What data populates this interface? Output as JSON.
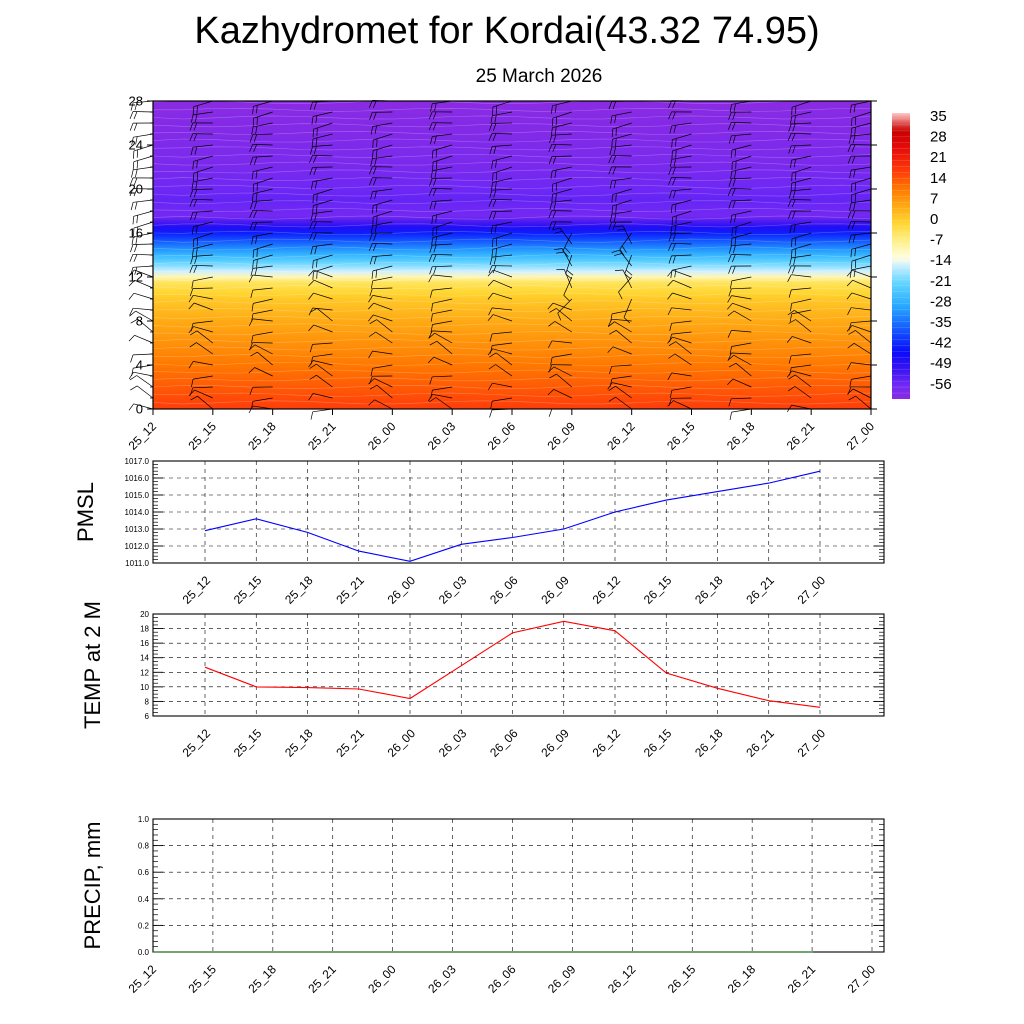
{
  "header": {
    "title": "Kazhydromet for Kordai(43.32 74.95)",
    "subtitle": "25 March 2026"
  },
  "time_labels": [
    "25_12",
    "25_15",
    "25_18",
    "25_21",
    "26_00",
    "26_03",
    "26_06",
    "26_09",
    "26_12",
    "26_15",
    "26_18",
    "26_21",
    "27_00"
  ],
  "colors": {
    "pmsl_line": "#0000ff",
    "temp_line": "#ff0000",
    "precip_line": "#006400",
    "grid": "#000000",
    "wind_barb": "#000000"
  },
  "chart_data": [
    {
      "id": "profile",
      "type": "heatmap",
      "title": "",
      "ylabel": "",
      "ylim": [
        0,
        28
      ],
      "yticks": [
        0,
        4,
        8,
        12,
        16,
        20,
        24,
        28
      ],
      "x": [
        "25_12",
        "25_15",
        "25_18",
        "25_21",
        "26_00",
        "26_03",
        "26_06",
        "26_09",
        "26_12",
        "26_15",
        "26_18",
        "26_21",
        "27_00"
      ],
      "colorbar": {
        "labels": [
          "35",
          "28",
          "21",
          "14",
          "7",
          "0",
          "-7",
          "-14",
          "-21",
          "-28",
          "-35",
          "-42",
          "-49",
          "-56"
        ],
        "range": [
          -60,
          38
        ]
      },
      "temperature_profile": [
        {
          "level": 0,
          "value": 18
        },
        {
          "level": 2,
          "value": 15
        },
        {
          "level": 4,
          "value": 12
        },
        {
          "level": 6,
          "value": 9
        },
        {
          "level": 8,
          "value": 6
        },
        {
          "level": 10,
          "value": 2
        },
        {
          "level": 11.5,
          "value": -3
        },
        {
          "level": 12.5,
          "value": -14
        },
        {
          "level": 14,
          "value": -26
        },
        {
          "level": 16,
          "value": -42
        },
        {
          "level": 17.5,
          "value": -56
        },
        {
          "level": 19,
          "value": -54
        },
        {
          "level": 22,
          "value": -57
        },
        {
          "level": 28,
          "value": -60
        }
      ],
      "wind_barbs": "present"
    },
    {
      "id": "pmsl",
      "type": "line",
      "ylabel": "PMSL",
      "ylim": [
        1011.0,
        1017.0
      ],
      "yticks": [
        "1011.0",
        "1012.0",
        "1013.0",
        "1014.0",
        "1015.0",
        "1016.0",
        "1017.0"
      ],
      "x": [
        "25_12",
        "25_15",
        "25_18",
        "25_21",
        "26_00",
        "26_03",
        "26_06",
        "26_09",
        "26_12",
        "26_15",
        "26_18",
        "26_21",
        "27_00"
      ],
      "series": [
        {
          "name": "PMSL",
          "values": [
            1012.9,
            1013.6,
            1012.8,
            1011.7,
            1011.1,
            1012.1,
            1012.5,
            1013.0,
            1014.0,
            1014.7,
            1015.2,
            1015.7,
            1016.4
          ]
        }
      ]
    },
    {
      "id": "temp",
      "type": "line",
      "ylabel": "TEMP at 2 M",
      "ylim": [
        6,
        20
      ],
      "yticks": [
        "6",
        "8",
        "10",
        "12",
        "14",
        "16",
        "18",
        "20"
      ],
      "x": [
        "25_12",
        "25_15",
        "25_18",
        "25_21",
        "26_00",
        "26_03",
        "26_06",
        "26_09",
        "26_12",
        "26_15",
        "26_18",
        "26_21",
        "27_00"
      ],
      "series": [
        {
          "name": "TEMP at 2 M",
          "values": [
            12.7,
            10.0,
            9.9,
            9.7,
            8.4,
            12.9,
            17.4,
            19.0,
            17.7,
            11.9,
            9.8,
            8.1,
            7.2
          ]
        }
      ]
    },
    {
      "id": "precip",
      "type": "line",
      "ylabel": "PRECIP, mm",
      "ylim": [
        0.0,
        1.0
      ],
      "yticks": [
        "0.0",
        "0.2",
        "0.4",
        "0.6",
        "0.8",
        "1.0"
      ],
      "x": [
        "25_12",
        "25_15",
        "25_18",
        "25_21",
        "26_00",
        "26_03",
        "26_06",
        "26_09",
        "26_12",
        "26_15",
        "26_18",
        "26_21",
        "27_00"
      ],
      "series": [
        {
          "name": "PRECIP, mm",
          "values": [
            0,
            0,
            0,
            0,
            0,
            0,
            0,
            0,
            0,
            0,
            0,
            0,
            0
          ]
        }
      ]
    }
  ]
}
